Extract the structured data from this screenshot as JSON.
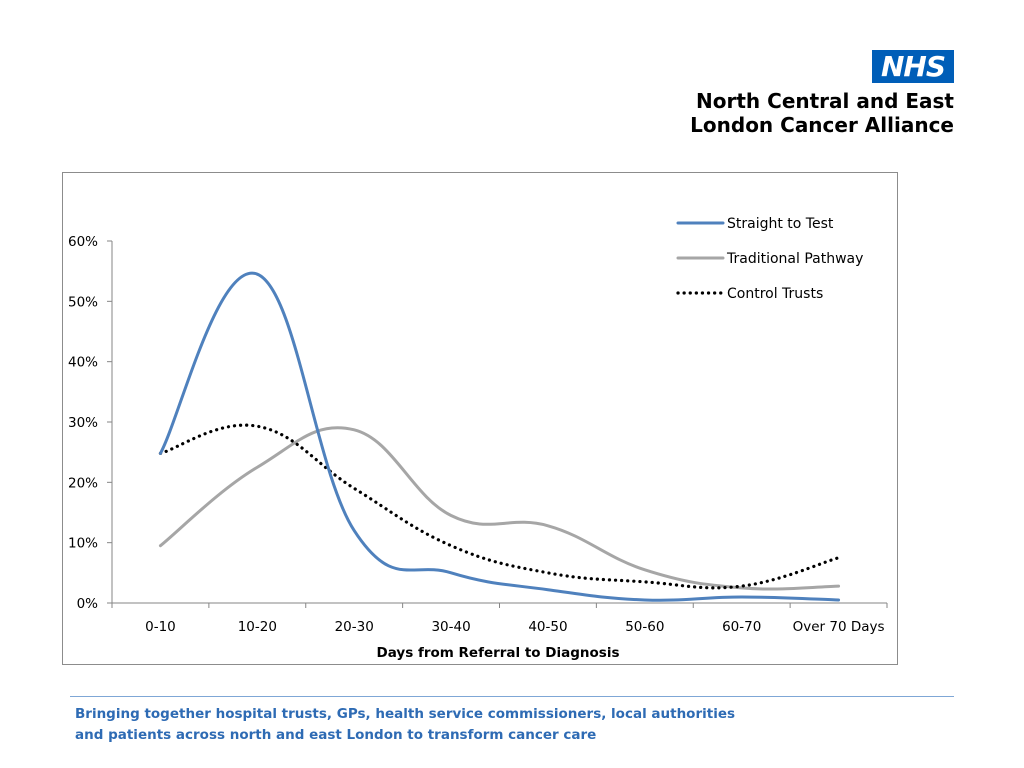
{
  "header": {
    "logo_text": "NHS",
    "org_line1": "North Central and East",
    "org_line2": "London Cancer Alliance",
    "logo_color": "#005eb8"
  },
  "footer": {
    "line1": "Bringing together hospital trusts, GPs, health service commissioners, local authorities",
    "line2": "and patients across north and east London to transform cancer care",
    "text_color": "#2e6bb4"
  },
  "chart_data": {
    "type": "line",
    "title": "",
    "xlabel": "Days from Referral to Diagnosis",
    "ylabel": "",
    "categories": [
      "0-10",
      "10-20",
      "20-30",
      "30-40",
      "40-50",
      "50-60",
      "60-70",
      "Over 70 Days"
    ],
    "y_ticks": [
      "0%",
      "10%",
      "20%",
      "30%",
      "40%",
      "50%",
      "60%"
    ],
    "ylim": [
      0,
      60
    ],
    "y_unit": "%",
    "grid": false,
    "smooth": true,
    "legend_position": "top-right",
    "series": [
      {
        "name": "Straight to Test",
        "values": [
          24.8,
          54.5,
          12.0,
          5.0,
          2.2,
          0.5,
          1.0,
          0.5
        ],
        "color": "#4f81bd",
        "style": "solid"
      },
      {
        "name": "Traditional Pathway",
        "values": [
          9.5,
          22.5,
          28.7,
          14.5,
          12.8,
          5.5,
          2.5,
          2.8
        ],
        "color": "#a6a6a6",
        "style": "solid"
      },
      {
        "name": "Control Trusts",
        "values": [
          24.8,
          29.3,
          19.0,
          9.5,
          5.0,
          3.5,
          2.8,
          7.5
        ],
        "color": "#000000",
        "style": "dotted"
      }
    ]
  }
}
